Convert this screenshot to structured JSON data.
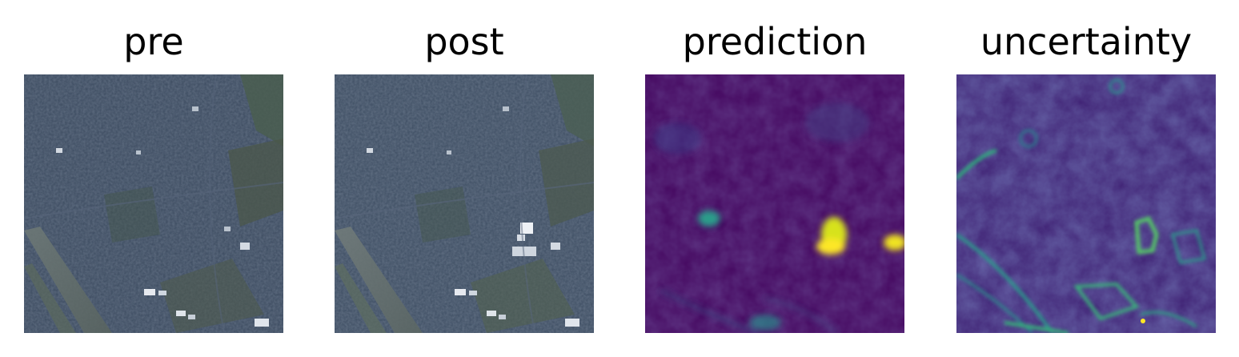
{
  "panels": [
    {
      "title": "pre",
      "kind": "rgb-satellite"
    },
    {
      "title": "post",
      "kind": "rgb-satellite"
    },
    {
      "title": "prediction",
      "kind": "heatmap"
    },
    {
      "title": "uncertainty",
      "kind": "heatmap"
    }
  ],
  "colors": {
    "satellite_base": "#3a4a5e",
    "heatmap_low": "#440154",
    "heatmap_mid": "#31688e",
    "heatmap_high": "#fde725"
  }
}
